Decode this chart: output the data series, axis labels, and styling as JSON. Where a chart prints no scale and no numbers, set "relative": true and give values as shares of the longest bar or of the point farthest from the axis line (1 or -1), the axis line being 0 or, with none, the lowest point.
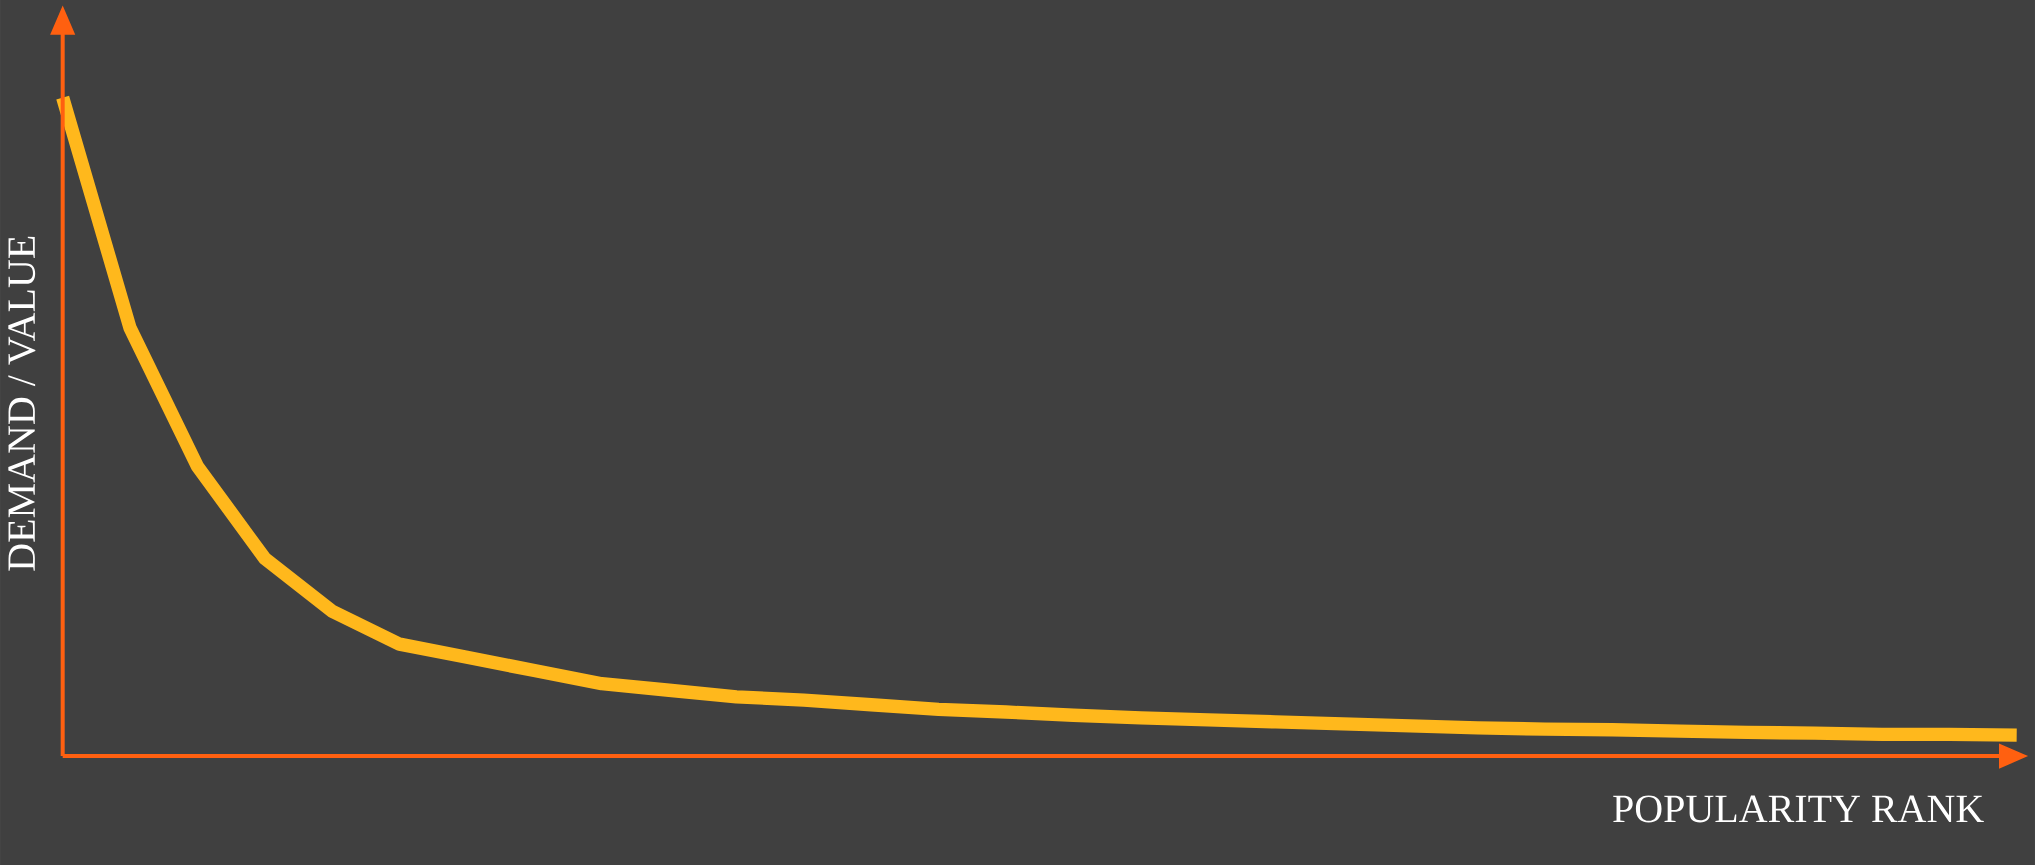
{
  "chart_data": {
    "type": "line",
    "relative": true,
    "xlabel": "POPULARITY RANK",
    "ylabel": "DEMAND / VALUE",
    "categories": [
      null,
      null,
      null,
      null,
      null,
      null,
      null,
      null,
      null,
      null,
      null,
      null,
      null,
      null,
      null,
      null,
      null,
      null,
      null,
      null,
      null,
      null,
      null,
      null,
      null,
      null,
      null,
      null,
      null,
      null
    ],
    "series": [
      {
        "color": "#ffb81c",
        "values": [
          1.0,
          0.65,
          0.44,
          0.3,
          0.22,
          0.17,
          0.15,
          0.13,
          0.11,
          0.1,
          0.09,
          0.085,
          0.078,
          0.071,
          0.067,
          0.062,
          0.058,
          0.055,
          0.052,
          0.049,
          0.046,
          0.043,
          0.041,
          0.04,
          0.038,
          0.036,
          0.035,
          0.033,
          0.033,
          0.032
        ]
      }
    ]
  }
}
